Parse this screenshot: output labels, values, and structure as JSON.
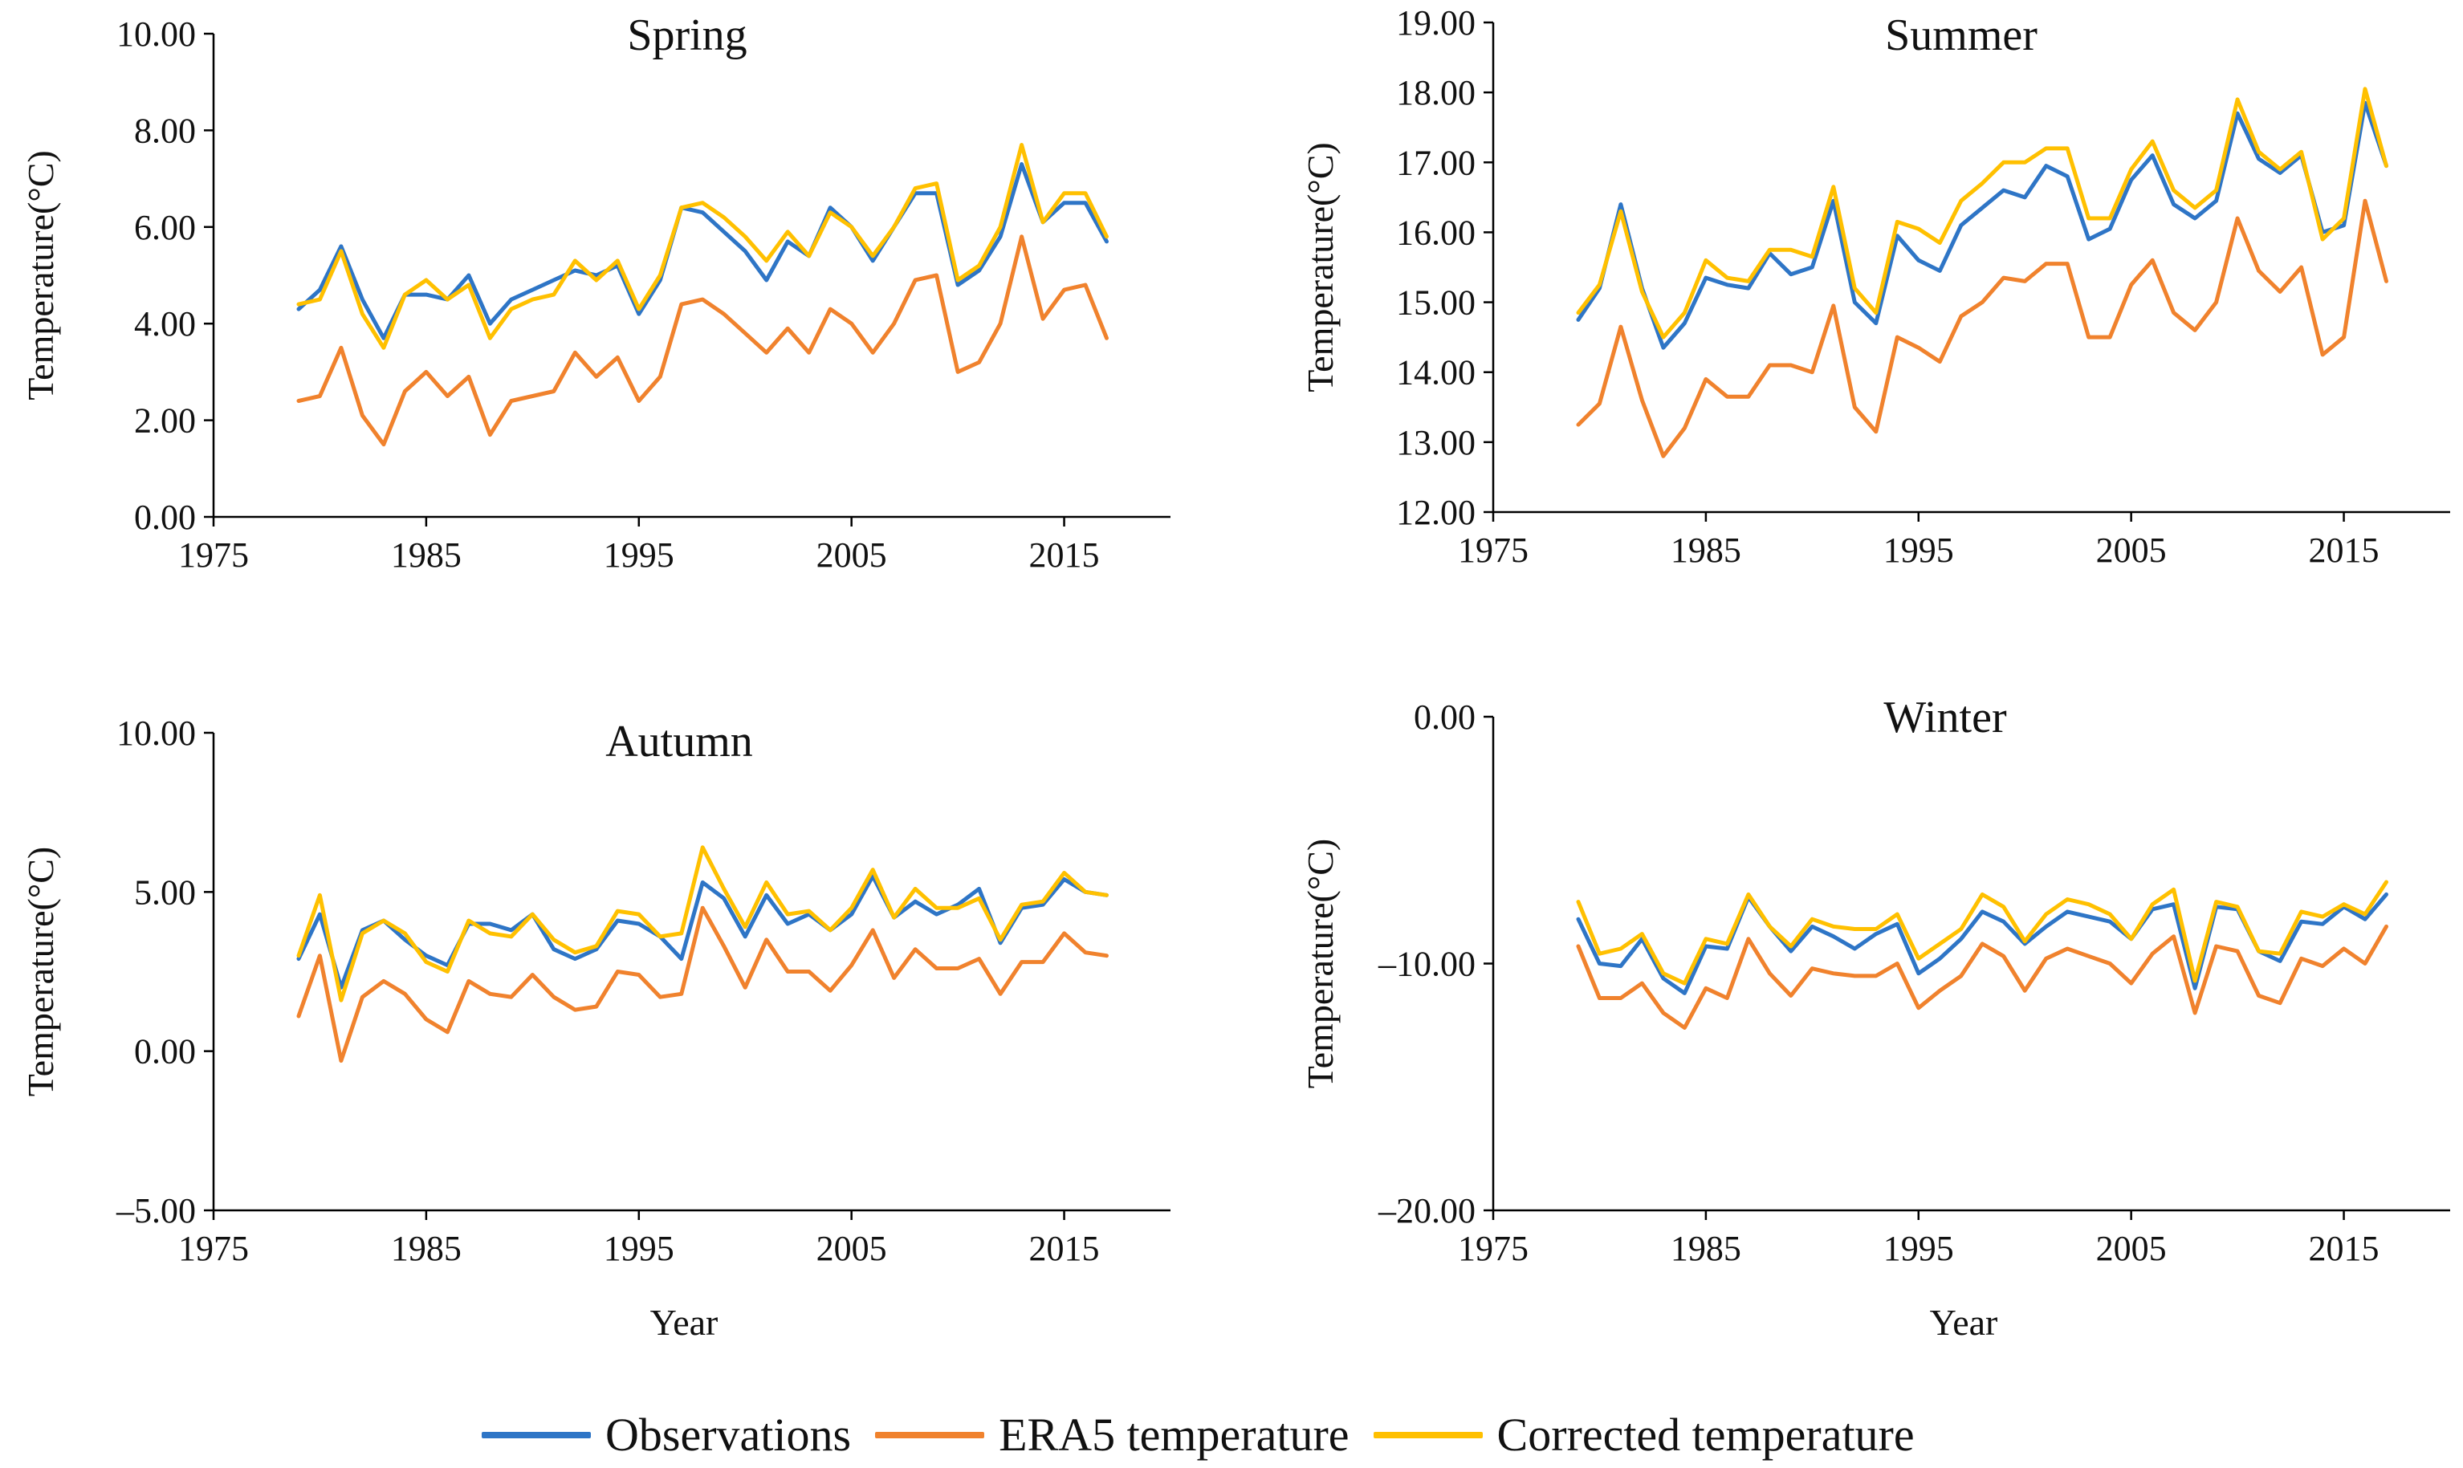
{
  "legend": {
    "observations": "Observations",
    "era5": "ERA5 temperature",
    "corrected": "Corrected temperature"
  },
  "colors": {
    "observations": "#2E75C6",
    "era5": "#F0822D",
    "corrected": "#FFC000",
    "axis": "#000000"
  },
  "chart_data": [
    {
      "type": "line",
      "title": "Spring",
      "xlabel": "",
      "ylabel": "Temperature(°C)",
      "xlim": [
        1975,
        2020
      ],
      "ylim": [
        0,
        10
      ],
      "xticks": [
        1975,
        1985,
        1995,
        2005,
        2015
      ],
      "yticks": [
        0,
        2,
        4,
        6,
        8,
        10
      ],
      "ytick_labels": [
        "0.00",
        "2.00",
        "4.00",
        "6.00",
        "8.00",
        "10.00"
      ],
      "x": [
        1979,
        1980,
        1981,
        1982,
        1983,
        1984,
        1985,
        1986,
        1987,
        1988,
        1989,
        1990,
        1991,
        1992,
        1993,
        1994,
        1995,
        1996,
        1997,
        1998,
        1999,
        2000,
        2001,
        2002,
        2003,
        2004,
        2005,
        2006,
        2007,
        2008,
        2009,
        2010,
        2011,
        2012,
        2013,
        2014,
        2015,
        2016,
        2017
      ],
      "series": [
        {
          "name": "Observations",
          "key": "observations",
          "values": [
            4.3,
            4.7,
            5.6,
            4.5,
            3.7,
            4.6,
            4.6,
            4.5,
            5.0,
            4.0,
            4.5,
            4.7,
            4.9,
            5.1,
            5.0,
            5.2,
            4.2,
            4.9,
            6.4,
            6.3,
            5.9,
            5.5,
            4.9,
            5.7,
            5.4,
            6.4,
            6.0,
            5.3,
            6.0,
            6.7,
            6.7,
            4.8,
            5.1,
            5.8,
            7.3,
            6.1,
            6.5,
            6.5,
            5.7
          ]
        },
        {
          "name": "ERA5 temperature",
          "key": "era5",
          "values": [
            2.4,
            2.5,
            3.5,
            2.1,
            1.5,
            2.6,
            3.0,
            2.5,
            2.9,
            1.7,
            2.4,
            2.5,
            2.6,
            3.4,
            2.9,
            3.3,
            2.4,
            2.9,
            4.4,
            4.5,
            4.2,
            3.8,
            3.4,
            3.9,
            3.4,
            4.3,
            4.0,
            3.4,
            4.0,
            4.9,
            5.0,
            3.0,
            3.2,
            4.0,
            5.8,
            4.1,
            4.7,
            4.8,
            3.7
          ]
        },
        {
          "name": "Corrected temperature",
          "key": "corrected",
          "values": [
            4.4,
            4.5,
            5.5,
            4.2,
            3.5,
            4.6,
            4.9,
            4.5,
            4.8,
            3.7,
            4.3,
            4.5,
            4.6,
            5.3,
            4.9,
            5.3,
            4.3,
            5.0,
            6.4,
            6.5,
            6.2,
            5.8,
            5.3,
            5.9,
            5.4,
            6.3,
            6.0,
            5.4,
            6.0,
            6.8,
            6.9,
            4.9,
            5.2,
            6.0,
            7.7,
            6.1,
            6.7,
            6.7,
            5.8
          ]
        }
      ]
    },
    {
      "type": "line",
      "title": "Summer",
      "xlabel": "",
      "ylabel": "Temperature(°C)",
      "xlim": [
        1975,
        2020
      ],
      "ylim": [
        12,
        19
      ],
      "xticks": [
        1975,
        1985,
        1995,
        2005,
        2015
      ],
      "yticks": [
        12,
        13,
        14,
        15,
        16,
        17,
        18,
        19
      ],
      "ytick_labels": [
        "12.00",
        "13.00",
        "14.00",
        "15.00",
        "16.00",
        "17.00",
        "18.00",
        "19.00"
      ],
      "x": [
        1979,
        1980,
        1981,
        1982,
        1983,
        1984,
        1985,
        1986,
        1987,
        1988,
        1989,
        1990,
        1991,
        1992,
        1993,
        1994,
        1995,
        1996,
        1997,
        1998,
        1999,
        2000,
        2001,
        2002,
        2003,
        2004,
        2005,
        2006,
        2007,
        2008,
        2009,
        2010,
        2011,
        2012,
        2013,
        2014,
        2015,
        2016,
        2017
      ],
      "series": [
        {
          "name": "Observations",
          "key": "observations",
          "values": [
            14.75,
            15.2,
            16.4,
            15.2,
            14.35,
            14.7,
            15.35,
            15.25,
            15.2,
            15.7,
            15.4,
            15.5,
            16.45,
            15.0,
            14.7,
            15.95,
            15.6,
            15.45,
            16.1,
            16.35,
            16.6,
            16.5,
            16.95,
            16.8,
            15.9,
            16.05,
            16.75,
            17.1,
            16.4,
            16.2,
            16.45,
            17.7,
            17.05,
            16.85,
            17.1,
            16.0,
            16.1,
            17.85,
            16.95
          ]
        },
        {
          "name": "ERA5 temperature",
          "key": "era5",
          "values": [
            13.25,
            13.55,
            14.65,
            13.6,
            12.8,
            13.2,
            13.9,
            13.65,
            13.65,
            14.1,
            14.1,
            14.0,
            14.95,
            13.5,
            13.15,
            14.5,
            14.35,
            14.15,
            14.8,
            15.0,
            15.35,
            15.3,
            15.55,
            15.55,
            14.5,
            14.5,
            15.25,
            15.6,
            14.85,
            14.6,
            15.0,
            16.2,
            15.45,
            15.15,
            15.5,
            14.25,
            14.5,
            16.45,
            15.3
          ]
        },
        {
          "name": "Corrected temperature",
          "key": "corrected",
          "values": [
            14.85,
            15.25,
            16.3,
            15.15,
            14.5,
            14.85,
            15.6,
            15.35,
            15.3,
            15.75,
            15.75,
            15.65,
            16.65,
            15.2,
            14.85,
            16.15,
            16.05,
            15.85,
            16.45,
            16.7,
            17.0,
            17.0,
            17.2,
            17.2,
            16.2,
            16.2,
            16.9,
            17.3,
            16.6,
            16.35,
            16.6,
            17.9,
            17.15,
            16.9,
            17.15,
            15.9,
            16.2,
            18.05,
            16.95
          ]
        }
      ]
    },
    {
      "type": "line",
      "title": "Autumn",
      "xlabel": "Year",
      "ylabel": "Temperature(°C)",
      "xlim": [
        1975,
        2020
      ],
      "ylim": [
        -5,
        10
      ],
      "xticks": [
        1975,
        1985,
        1995,
        2005,
        2015
      ],
      "yticks": [
        -5,
        0,
        5,
        10
      ],
      "ytick_labels": [
        "–5.00",
        "0.00",
        "5.00",
        "10.00"
      ],
      "x": [
        1979,
        1980,
        1981,
        1982,
        1983,
        1984,
        1985,
        1986,
        1987,
        1988,
        1989,
        1990,
        1991,
        1992,
        1993,
        1994,
        1995,
        1996,
        1997,
        1998,
        1999,
        2000,
        2001,
        2002,
        2003,
        2004,
        2005,
        2006,
        2007,
        2008,
        2009,
        2010,
        2011,
        2012,
        2013,
        2014,
        2015,
        2016,
        2017
      ],
      "series": [
        {
          "name": "Observations",
          "key": "observations",
          "values": [
            2.9,
            4.3,
            2.0,
            3.8,
            4.1,
            3.5,
            3.0,
            2.7,
            4.0,
            4.0,
            3.8,
            4.3,
            3.2,
            2.9,
            3.2,
            4.1,
            4.0,
            3.6,
            2.9,
            5.3,
            4.8,
            3.6,
            4.9,
            4.0,
            4.3,
            3.8,
            4.3,
            5.5,
            4.2,
            4.7,
            4.3,
            4.6,
            5.1,
            3.4,
            4.5,
            4.6,
            5.4,
            5.0,
            4.9
          ]
        },
        {
          "name": "ERA5 temperature",
          "key": "era5",
          "values": [
            1.1,
            3.0,
            -0.3,
            1.7,
            2.2,
            1.8,
            1.0,
            0.6,
            2.2,
            1.8,
            1.7,
            2.4,
            1.7,
            1.3,
            1.4,
            2.5,
            2.4,
            1.7,
            1.8,
            4.5,
            3.3,
            2.0,
            3.5,
            2.5,
            2.5,
            1.9,
            2.7,
            3.8,
            2.3,
            3.2,
            2.6,
            2.6,
            2.9,
            1.8,
            2.8,
            2.8,
            3.7,
            3.1,
            3.0
          ]
        },
        {
          "name": "Corrected temperature",
          "key": "corrected",
          "values": [
            3.0,
            4.9,
            1.6,
            3.7,
            4.1,
            3.7,
            2.8,
            2.5,
            4.1,
            3.7,
            3.6,
            4.3,
            3.5,
            3.1,
            3.3,
            4.4,
            4.3,
            3.6,
            3.7,
            6.4,
            5.1,
            3.9,
            5.3,
            4.3,
            4.4,
            3.8,
            4.5,
            5.7,
            4.2,
            5.1,
            4.5,
            4.5,
            4.8,
            3.5,
            4.6,
            4.7,
            5.6,
            5.0,
            4.9
          ]
        }
      ]
    },
    {
      "type": "line",
      "title": "Winter",
      "xlabel": "Year",
      "ylabel": "Temperature(°C)",
      "xlim": [
        1975,
        2020
      ],
      "ylim": [
        -20,
        0
      ],
      "xticks": [
        1975,
        1985,
        1995,
        2005,
        2015
      ],
      "yticks": [
        -20,
        -10,
        0
      ],
      "ytick_labels": [
        "–20.00",
        "–10.00",
        "0.00"
      ],
      "x": [
        1979,
        1980,
        1981,
        1982,
        1983,
        1984,
        1985,
        1986,
        1987,
        1988,
        1989,
        1990,
        1991,
        1992,
        1993,
        1994,
        1995,
        1996,
        1997,
        1998,
        1999,
        2000,
        2001,
        2002,
        2003,
        2004,
        2005,
        2006,
        2007,
        2008,
        2009,
        2010,
        2011,
        2012,
        2013,
        2014,
        2015,
        2016,
        2017
      ],
      "series": [
        {
          "name": "Observations",
          "key": "observations",
          "values": [
            -8.2,
            -10.0,
            -10.1,
            -9.0,
            -10.6,
            -11.2,
            -9.3,
            -9.4,
            -7.3,
            -8.5,
            -9.5,
            -8.5,
            -8.9,
            -9.4,
            -8.8,
            -8.4,
            -10.4,
            -9.8,
            -9.0,
            -7.9,
            -8.3,
            -9.2,
            -8.5,
            -7.9,
            -8.1,
            -8.3,
            -9.0,
            -7.8,
            -7.6,
            -11.0,
            -7.7,
            -7.8,
            -9.5,
            -9.9,
            -8.3,
            -8.4,
            -7.7,
            -8.2,
            -7.2
          ]
        },
        {
          "name": "ERA5 temperature",
          "key": "era5",
          "values": [
            -9.3,
            -11.4,
            -11.4,
            -10.8,
            -12.0,
            -12.6,
            -11.0,
            -11.4,
            -9.0,
            -10.4,
            -11.3,
            -10.2,
            -10.4,
            -10.5,
            -10.5,
            -10.0,
            -11.8,
            -11.1,
            -10.5,
            -9.2,
            -9.7,
            -11.1,
            -9.8,
            -9.4,
            -9.7,
            -10.0,
            -10.8,
            -9.6,
            -8.9,
            -12.0,
            -9.3,
            -9.5,
            -11.3,
            -11.6,
            -9.8,
            -10.1,
            -9.4,
            -10.0,
            -8.5
          ]
        },
        {
          "name": "Corrected temperature",
          "key": "corrected",
          "values": [
            -7.5,
            -9.6,
            -9.4,
            -8.8,
            -10.4,
            -10.8,
            -9.0,
            -9.2,
            -7.2,
            -8.5,
            -9.3,
            -8.2,
            -8.5,
            -8.6,
            -8.6,
            -8.0,
            -9.8,
            -9.2,
            -8.6,
            -7.2,
            -7.7,
            -9.1,
            -8.0,
            -7.4,
            -7.6,
            -8.0,
            -9.0,
            -7.6,
            -7.0,
            -10.7,
            -7.5,
            -7.7,
            -9.5,
            -9.6,
            -7.9,
            -8.1,
            -7.6,
            -8.0,
            -6.7
          ]
        }
      ]
    }
  ]
}
